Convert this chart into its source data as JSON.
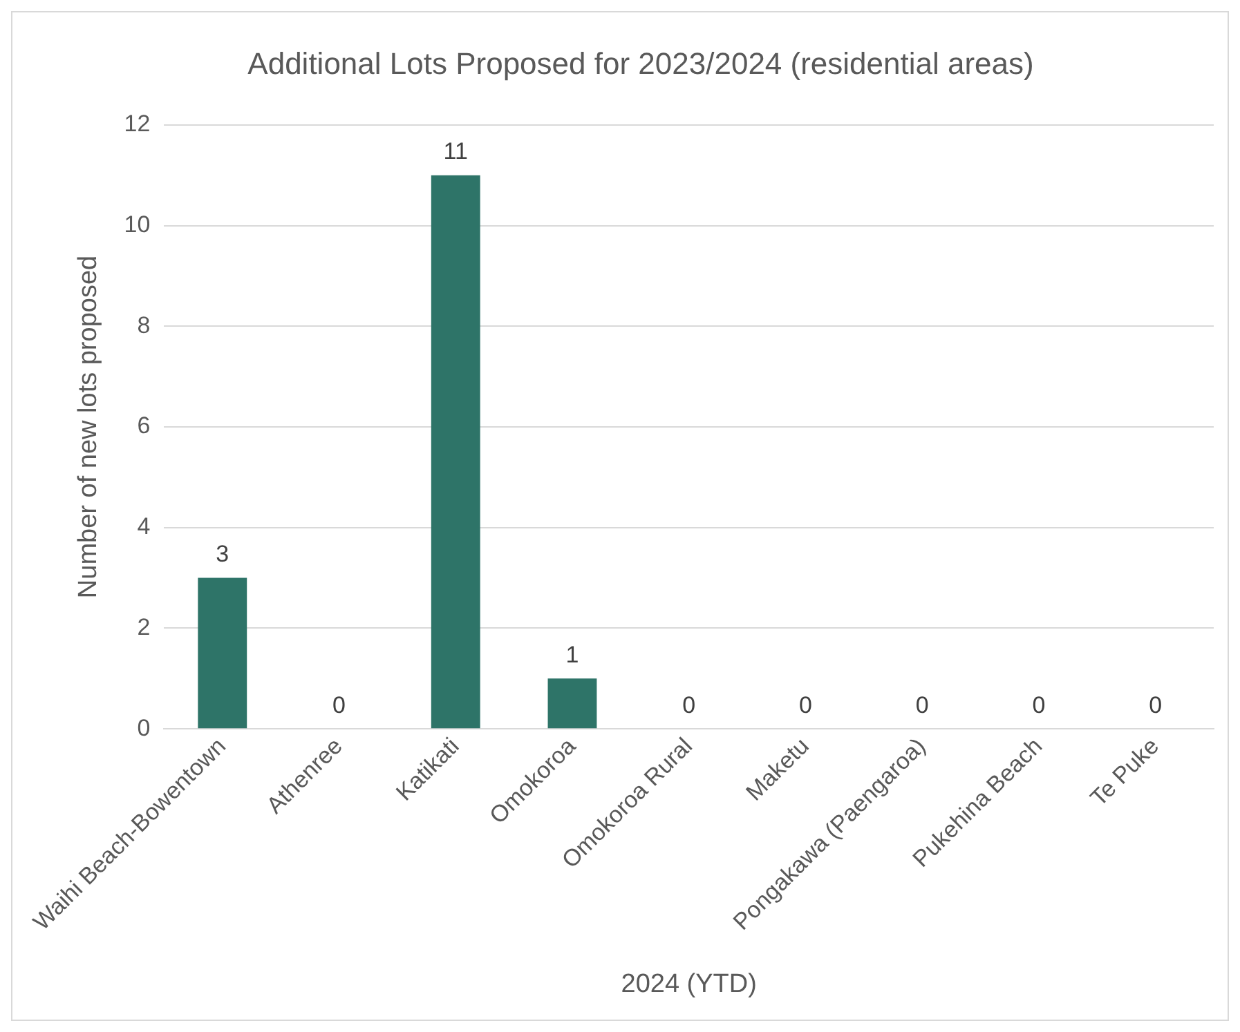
{
  "chart_data": {
    "type": "bar",
    "title": "Additional Lots Proposed for 2023/2024 (residential areas)",
    "xlabel": "2024 (YTD)",
    "ylabel": "Number of new lots proposed",
    "categories": [
      "Waihi Beach-Bowentown",
      "Athenree",
      "Katikati",
      "Omokoroa",
      "Omokoroa Rural",
      "Maketu",
      "Pongakawa (Paengaroa)",
      "Pukehina Beach",
      "Te Puke"
    ],
    "values": [
      3,
      0,
      11,
      1,
      0,
      0,
      0,
      0,
      0
    ],
    "color": "#2e7468",
    "ylim": [
      0,
      12
    ],
    "yticks": [
      0,
      2,
      4,
      6,
      8,
      10,
      12
    ],
    "grid": "y",
    "data_labels": true,
    "legend": false
  }
}
